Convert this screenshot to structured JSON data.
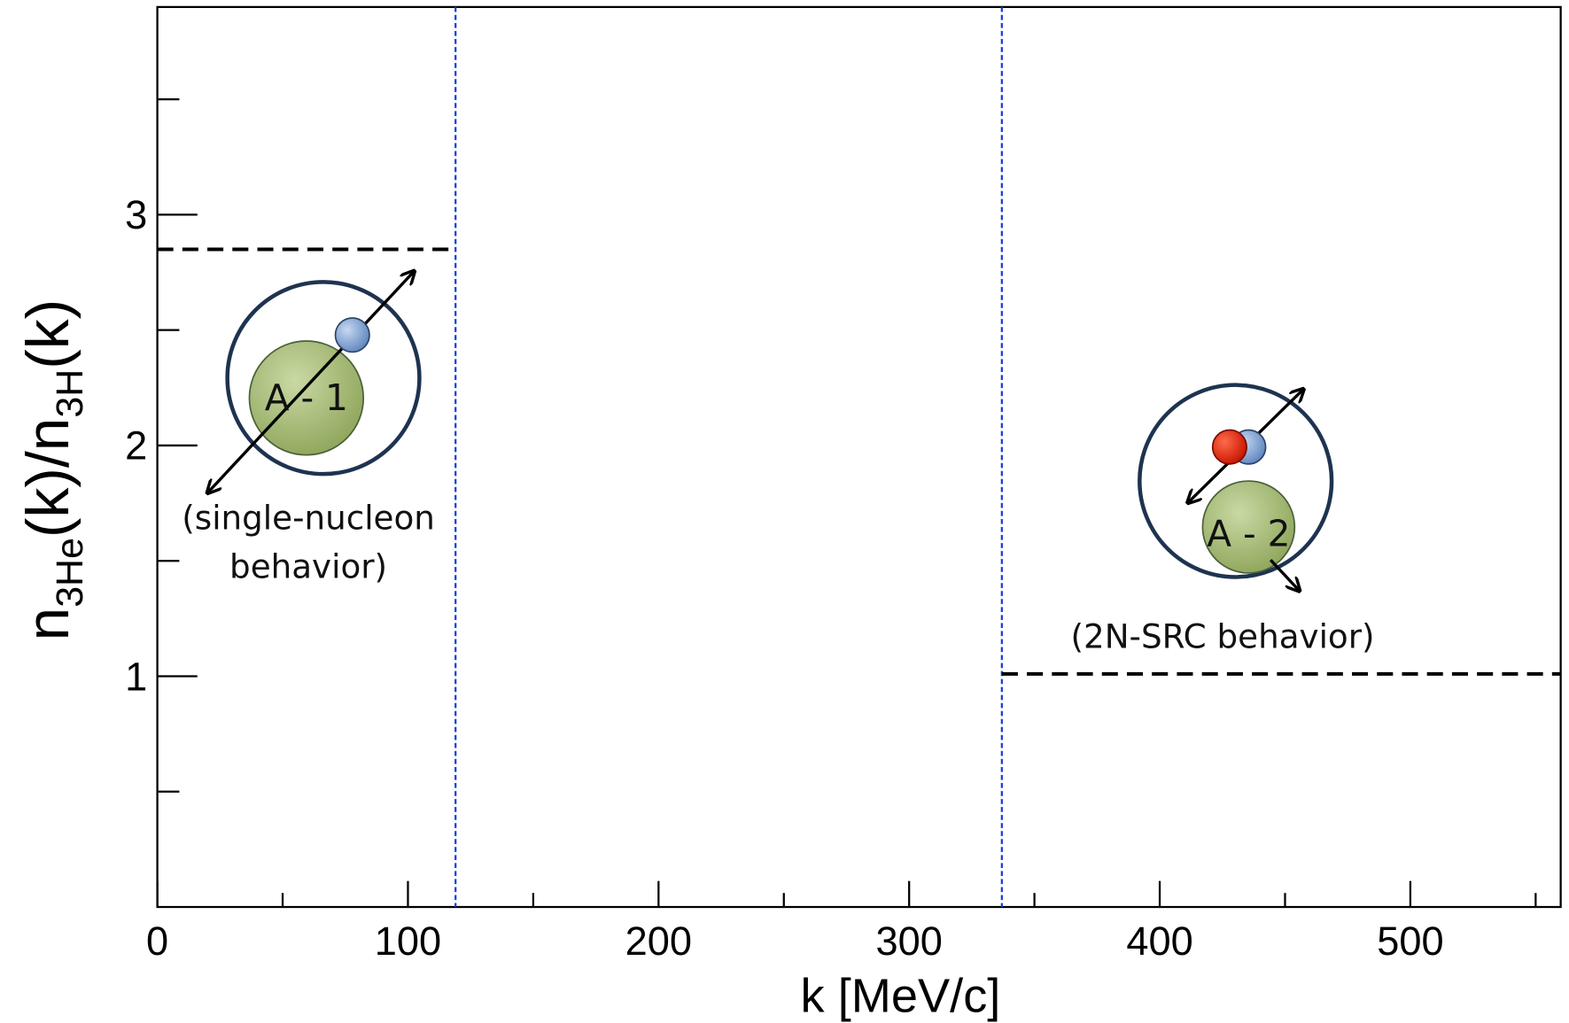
{
  "chart_data": {
    "type": "reference",
    "xlabel": "k  [MeV/c]",
    "ylabel_parts": [
      "n",
      "3He",
      "(k)/n",
      "3H",
      "(k)"
    ],
    "xlim": [
      0,
      560
    ],
    "ylim": [
      0,
      3.9
    ],
    "xticks": [
      0,
      100,
      200,
      300,
      400,
      500
    ],
    "xminor_ticks": [
      50,
      150,
      250,
      350,
      450,
      550
    ],
    "yticks": [
      1,
      2,
      3
    ],
    "yminor_ticks": [
      0.5,
      1.5,
      2.5,
      3.5
    ],
    "vlines": [
      {
        "x": 119,
        "color": "#1a3fd6"
      },
      {
        "x": 337,
        "color": "#1a3fd6"
      }
    ],
    "hlines": [
      {
        "y": 2.85,
        "x_range": [
          0,
          119
        ],
        "color": "#000000"
      },
      {
        "y": 1.01,
        "x_range": [
          337,
          560
        ],
        "color": "#000000"
      }
    ],
    "annotations": [
      "(single-nucleon",
      "behavior)",
      "A - 1",
      "A - 2",
      "(2N-SRC behavior)"
    ]
  }
}
